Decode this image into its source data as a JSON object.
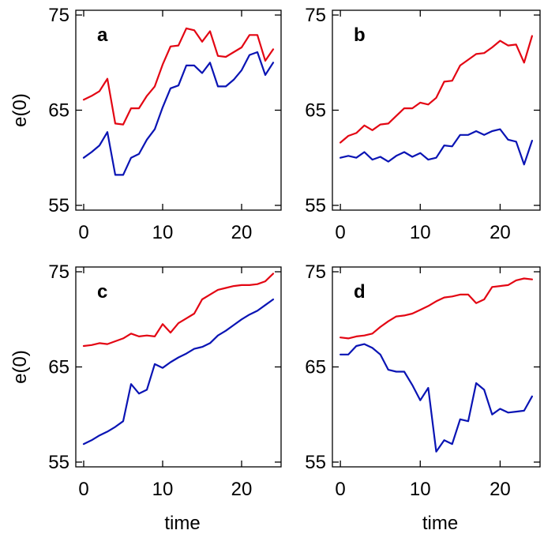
{
  "chart_data": [
    {
      "type": "line",
      "panel_label": "a",
      "xlabel": "",
      "ylabel": "e(0)",
      "xlim": [
        -1,
        25
      ],
      "ylim": [
        54.5,
        75.5
      ],
      "xticks": [
        0,
        10,
        20
      ],
      "yticks": [
        55,
        65,
        75
      ],
      "series": [
        {
          "color": "#e30613",
          "x": [
            0,
            1,
            2,
            3,
            4,
            5,
            6,
            7,
            8,
            9,
            10,
            11,
            12,
            13,
            14,
            15,
            16,
            17,
            18,
            19,
            20,
            21,
            22,
            23,
            24
          ],
          "values": [
            66.1,
            66.5,
            67.0,
            68.3,
            63.6,
            63.5,
            65.2,
            65.2,
            66.5,
            67.5,
            69.8,
            71.7,
            71.8,
            73.6,
            73.4,
            72.2,
            73.3,
            70.7,
            70.6,
            71.1,
            71.6,
            72.9,
            72.9,
            70.2,
            71.4
          ]
        },
        {
          "color": "#0a14b4",
          "x": [
            0,
            1,
            2,
            3,
            4,
            5,
            6,
            7,
            8,
            9,
            10,
            11,
            12,
            13,
            14,
            15,
            16,
            17,
            18,
            19,
            20,
            21,
            22,
            23,
            24
          ],
          "values": [
            60.0,
            60.6,
            61.3,
            62.7,
            58.2,
            58.2,
            60.0,
            60.4,
            61.9,
            63.0,
            65.3,
            67.3,
            67.6,
            69.7,
            69.7,
            68.9,
            70.0,
            67.5,
            67.5,
            68.2,
            69.2,
            70.8,
            71.1,
            68.7,
            70.0
          ]
        }
      ]
    },
    {
      "type": "line",
      "panel_label": "b",
      "xlabel": "",
      "ylabel": "",
      "xlim": [
        -1,
        25
      ],
      "ylim": [
        54.5,
        75.5
      ],
      "xticks": [
        0,
        10,
        20
      ],
      "yticks": [
        55,
        65,
        75
      ],
      "series": [
        {
          "color": "#e30613",
          "x": [
            0,
            1,
            2,
            3,
            4,
            5,
            6,
            7,
            8,
            9,
            10,
            11,
            12,
            13,
            14,
            15,
            16,
            17,
            18,
            19,
            20,
            21,
            22,
            23,
            24
          ],
          "values": [
            61.6,
            62.3,
            62.6,
            63.4,
            62.9,
            63.5,
            63.6,
            64.4,
            65.2,
            65.2,
            65.8,
            65.6,
            66.3,
            68.0,
            68.1,
            69.7,
            70.3,
            70.9,
            71.0,
            71.6,
            72.3,
            71.8,
            71.9,
            70.0,
            72.8
          ]
        },
        {
          "color": "#0a14b4",
          "x": [
            0,
            1,
            2,
            3,
            4,
            5,
            6,
            7,
            8,
            9,
            10,
            11,
            12,
            13,
            14,
            15,
            16,
            17,
            18,
            19,
            20,
            21,
            22,
            23,
            24
          ],
          "values": [
            60.0,
            60.2,
            60.0,
            60.6,
            59.8,
            60.1,
            59.6,
            60.2,
            60.6,
            60.1,
            60.5,
            59.8,
            60.0,
            61.3,
            61.2,
            62.4,
            62.4,
            62.8,
            62.4,
            62.8,
            63.0,
            61.9,
            61.7,
            59.3,
            61.8
          ]
        }
      ]
    },
    {
      "type": "line",
      "panel_label": "c",
      "xlabel": "time",
      "ylabel": "e(0)",
      "xlim": [
        -1,
        25
      ],
      "ylim": [
        54.5,
        75.5
      ],
      "xticks": [
        0,
        10,
        20
      ],
      "yticks": [
        55,
        65,
        75
      ],
      "series": [
        {
          "color": "#e30613",
          "x": [
            0,
            1,
            2,
            3,
            4,
            5,
            6,
            7,
            8,
            9,
            10,
            11,
            12,
            13,
            14,
            15,
            16,
            17,
            18,
            19,
            20,
            21,
            22,
            23,
            24
          ],
          "values": [
            67.2,
            67.3,
            67.5,
            67.4,
            67.7,
            68.0,
            68.5,
            68.2,
            68.3,
            68.2,
            69.5,
            68.6,
            69.6,
            70.1,
            70.6,
            72.1,
            72.6,
            73.1,
            73.3,
            73.5,
            73.6,
            73.6,
            73.7,
            74.0,
            74.8
          ]
        },
        {
          "color": "#0a14b4",
          "x": [
            0,
            1,
            2,
            3,
            4,
            5,
            6,
            7,
            8,
            9,
            10,
            11,
            12,
            13,
            14,
            15,
            16,
            17,
            18,
            19,
            20,
            21,
            22,
            23,
            24
          ],
          "values": [
            56.9,
            57.3,
            57.8,
            58.2,
            58.7,
            59.3,
            63.2,
            62.2,
            62.6,
            65.3,
            64.9,
            65.5,
            66.0,
            66.4,
            66.9,
            67.1,
            67.5,
            68.3,
            68.8,
            69.4,
            70.0,
            70.5,
            70.9,
            71.5,
            72.1
          ]
        }
      ]
    },
    {
      "type": "line",
      "panel_label": "d",
      "xlabel": "time",
      "ylabel": "",
      "xlim": [
        -1,
        25
      ],
      "ylim": [
        54.5,
        75.5
      ],
      "xticks": [
        0,
        10,
        20
      ],
      "yticks": [
        55,
        65,
        75
      ],
      "series": [
        {
          "color": "#e30613",
          "x": [
            0,
            1,
            2,
            3,
            4,
            5,
            6,
            7,
            8,
            9,
            10,
            11,
            12,
            13,
            14,
            15,
            16,
            17,
            18,
            19,
            20,
            21,
            22,
            23,
            24
          ],
          "values": [
            68.1,
            68.0,
            68.2,
            68.3,
            68.5,
            69.2,
            69.8,
            70.3,
            70.4,
            70.6,
            71.0,
            71.4,
            71.9,
            72.3,
            72.4,
            72.6,
            72.6,
            71.7,
            72.1,
            73.4,
            73.5,
            73.6,
            74.1,
            74.3,
            74.2
          ]
        },
        {
          "color": "#0a14b4",
          "x": [
            0,
            1,
            2,
            3,
            4,
            5,
            6,
            7,
            8,
            9,
            10,
            11,
            12,
            13,
            14,
            15,
            16,
            17,
            18,
            19,
            20,
            21,
            22,
            23,
            24
          ],
          "values": [
            66.3,
            66.3,
            67.2,
            67.4,
            67.0,
            66.3,
            64.7,
            64.5,
            64.5,
            63.1,
            61.5,
            62.8,
            56.1,
            57.3,
            56.9,
            59.5,
            59.3,
            63.3,
            62.6,
            60.0,
            60.6,
            60.2,
            60.3,
            60.4,
            61.9
          ]
        }
      ]
    }
  ]
}
